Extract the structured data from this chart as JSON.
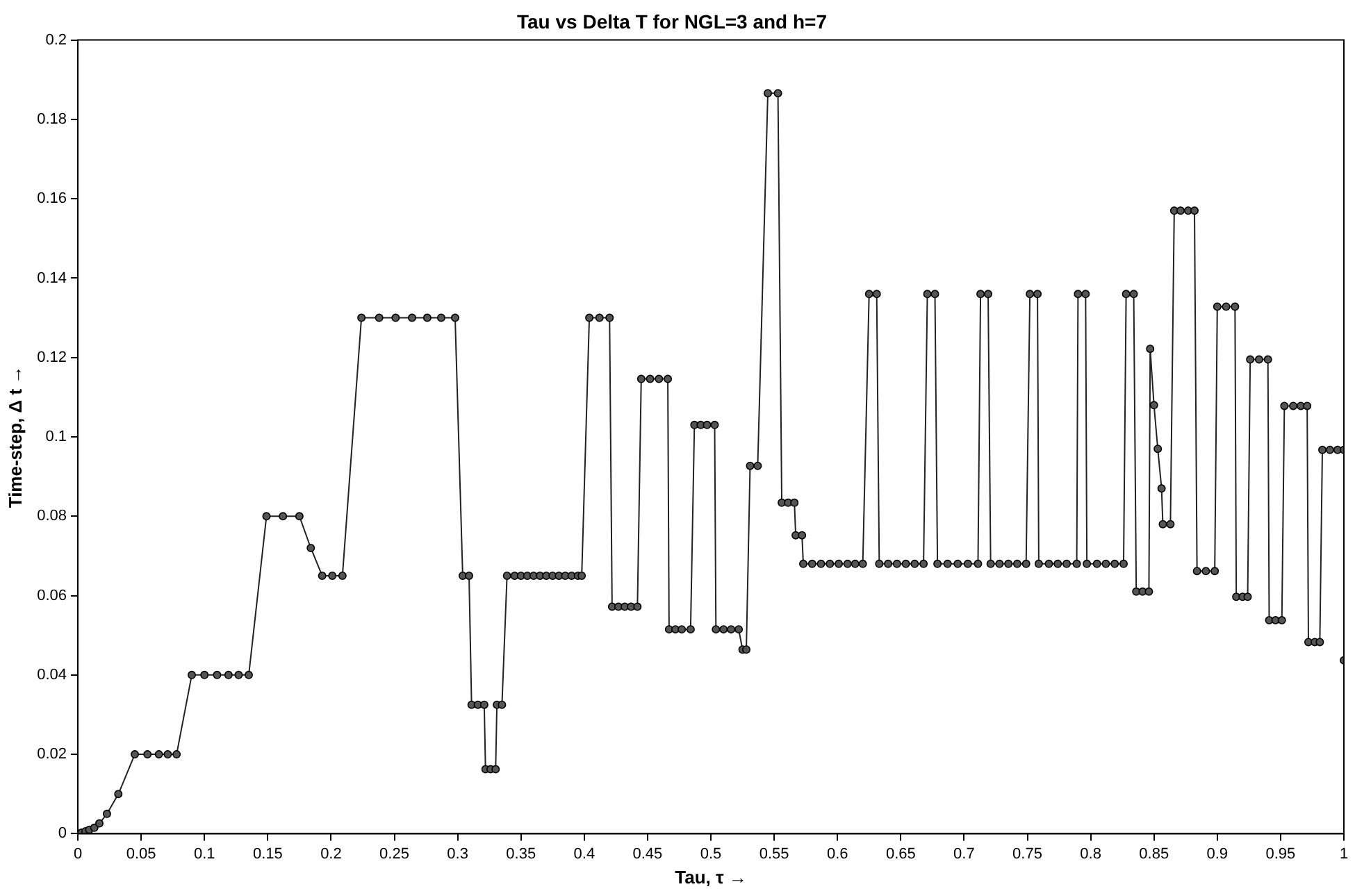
{
  "chart_data": {
    "type": "line",
    "title": "Tau vs Delta T for NGL=3 and h=7",
    "xlabel": "Tau, τ →",
    "ylabel": "Time-step, Δ t →",
    "xlim": [
      0,
      1
    ],
    "xticks": [
      0,
      0.05,
      0.1,
      0.15,
      0.2,
      0.25,
      0.3,
      0.35,
      0.4,
      0.45,
      0.5,
      0.55,
      0.6,
      0.65,
      0.7,
      0.75,
      0.8,
      0.85,
      0.9,
      0.95,
      1
    ],
    "ylim": [
      0,
      0.2
    ],
    "yticks": [
      0,
      0.02,
      0.04,
      0.06,
      0.08,
      0.1,
      0.12,
      0.14,
      0.16,
      0.18,
      0.2
    ],
    "grid": false,
    "legend": false,
    "marker": "circle",
    "line_style": "solid",
    "series": [
      {
        "color": "#222222",
        "x": [
          0,
          0.003,
          0.006,
          0.009,
          0.013,
          0.017,
          0.023,
          0.032,
          0.045,
          0.055,
          0.064,
          0.071,
          0.078,
          0.09,
          0.1,
          0.11,
          0.119,
          0.127,
          0.135,
          0.149,
          0.162,
          0.175,
          0.184,
          0.193,
          0.201,
          0.209,
          0.224,
          0.238,
          0.251,
          0.264,
          0.276,
          0.287,
          0.298,
          0.304,
          0.309,
          0.311,
          0.316,
          0.321,
          0.322,
          0.326,
          0.33,
          0.331,
          0.335,
          0.339,
          0.345,
          0.35,
          0.355,
          0.36,
          0.365,
          0.37,
          0.375,
          0.38,
          0.385,
          0.39,
          0.395,
          0.398,
          0.404,
          0.412,
          0.42,
          0.422,
          0.427,
          0.432,
          0.437,
          0.442,
          0.445,
          0.452,
          0.459,
          0.466,
          0.467,
          0.472,
          0.477,
          0.484,
          0.487,
          0.492,
          0.497,
          0.503,
          0.504,
          0.51,
          0.516,
          0.522,
          0.525,
          0.528,
          0.531,
          0.537,
          0.545,
          0.553,
          0.556,
          0.561,
          0.566,
          0.567,
          0.572,
          0.573,
          0.58,
          0.587,
          0.594,
          0.601,
          0.608,
          0.614,
          0.62,
          0.625,
          0.631,
          0.633,
          0.64,
          0.647,
          0.654,
          0.661,
          0.668,
          0.671,
          0.677,
          0.679,
          0.687,
          0.695,
          0.703,
          0.711,
          0.713,
          0.719,
          0.721,
          0.728,
          0.735,
          0.742,
          0.749,
          0.752,
          0.758,
          0.759,
          0.767,
          0.774,
          0.781,
          0.789,
          0.79,
          0.796,
          0.797,
          0.805,
          0.812,
          0.819,
          0.826,
          0.828,
          0.834,
          0.836,
          0.841,
          0.846,
          0.847,
          0.85,
          0.853,
          0.856,
          0.857,
          0.863,
          0.866,
          0.871,
          0.877,
          0.882,
          0.884,
          0.891,
          0.898,
          0.9,
          0.907,
          0.914,
          0.915,
          0.92,
          0.924,
          0.926,
          0.933,
          0.94,
          0.941,
          0.946,
          0.951,
          0.953,
          0.96,
          0.966,
          0.971,
          0.972,
          0.977,
          0.981,
          0.983,
          0.989,
          0.995,
          1,
          1
        ],
        "values": [
          0,
          0.0003,
          0.0006,
          0.001,
          0.0015,
          0.0026,
          0.005,
          0.01,
          0.02,
          0.02,
          0.02,
          0.02,
          0.02,
          0.04,
          0.04,
          0.04,
          0.04,
          0.04,
          0.04,
          0.08,
          0.08,
          0.08,
          0.072,
          0.065,
          0.065,
          0.065,
          0.13,
          0.13,
          0.13,
          0.13,
          0.13,
          0.13,
          0.13,
          0.065,
          0.065,
          0.0325,
          0.0325,
          0.0325,
          0.01625,
          0.01625,
          0.01625,
          0.0325,
          0.0325,
          0.065,
          0.065,
          0.065,
          0.065,
          0.065,
          0.065,
          0.065,
          0.065,
          0.065,
          0.065,
          0.065,
          0.065,
          0.065,
          0.13,
          0.13,
          0.13,
          0.0572,
          0.0572,
          0.0572,
          0.0572,
          0.0572,
          0.1146,
          0.1146,
          0.1146,
          0.1146,
          0.0515,
          0.0515,
          0.0515,
          0.0515,
          0.103,
          0.103,
          0.103,
          0.103,
          0.0515,
          0.0515,
          0.0515,
          0.0515,
          0.0464,
          0.0464,
          0.0927,
          0.0927,
          0.1866,
          0.1866,
          0.0834,
          0.0834,
          0.0834,
          0.0752,
          0.0752,
          0.068,
          0.068,
          0.068,
          0.068,
          0.068,
          0.068,
          0.068,
          0.068,
          0.136,
          0.136,
          0.068,
          0.068,
          0.068,
          0.068,
          0.068,
          0.068,
          0.136,
          0.136,
          0.068,
          0.068,
          0.068,
          0.068,
          0.068,
          0.136,
          0.136,
          0.068,
          0.068,
          0.068,
          0.068,
          0.068,
          0.136,
          0.136,
          0.068,
          0.068,
          0.068,
          0.068,
          0.068,
          0.136,
          0.136,
          0.068,
          0.068,
          0.068,
          0.068,
          0.068,
          0.136,
          0.136,
          0.061,
          0.061,
          0.061,
          0.1222,
          0.108,
          0.097,
          0.087,
          0.078,
          0.078,
          0.157,
          0.157,
          0.157,
          0.157,
          0.0662,
          0.0662,
          0.0662,
          0.1328,
          0.1328,
          0.1328,
          0.0597,
          0.0597,
          0.0597,
          0.1195,
          0.1195,
          0.1195,
          0.0538,
          0.0538,
          0.0538,
          0.1078,
          0.1078,
          0.1078,
          0.1078,
          0.0483,
          0.0483,
          0.0483,
          0.0967,
          0.0967,
          0.0967,
          0.0967,
          0.0437
        ]
      }
    ]
  }
}
